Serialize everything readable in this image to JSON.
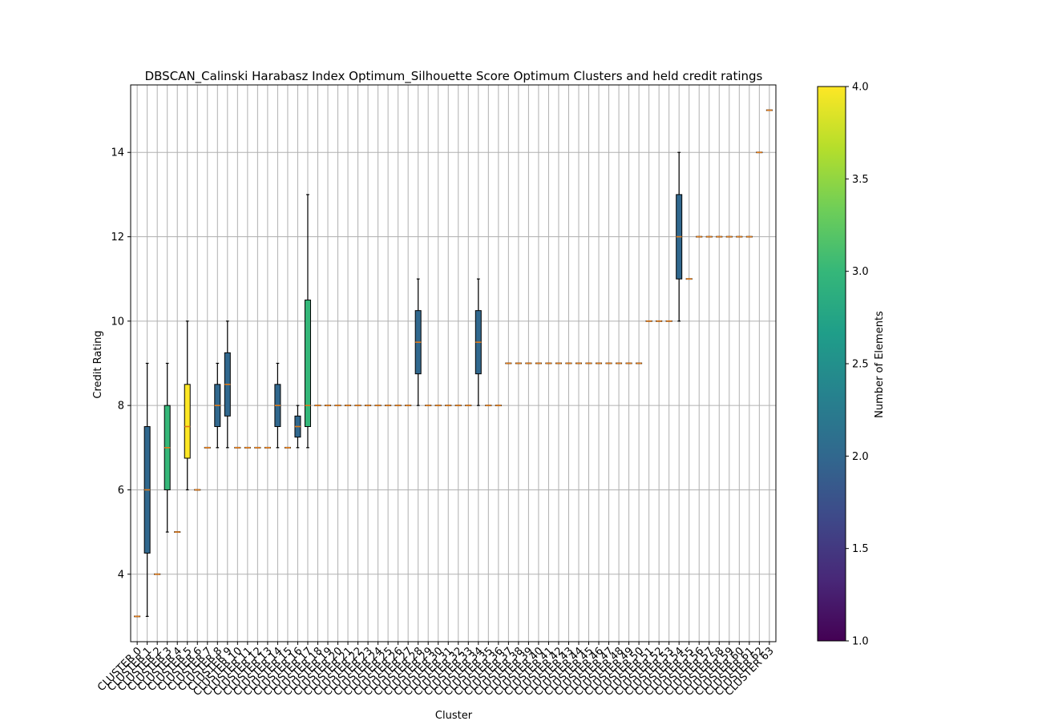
{
  "chart_data": {
    "type": "boxplot",
    "title": "DBSCAN_Calinski Harabasz Index Optimum_Silhouette Score Optimum Clusters and held credit ratings",
    "xlabel": "Cluster",
    "ylabel": "Credit Rating",
    "ylim": [
      2.4,
      15.6
    ],
    "yticks": [
      4,
      6,
      8,
      10,
      12,
      14
    ],
    "grid": true,
    "box_stroke_color": "#000000",
    "median_color": "#e07b1a",
    "colorbar": {
      "label": "Number of Elements",
      "colormap": "viridis",
      "range": [
        1.0,
        4.0
      ],
      "ticks": [
        "1.0",
        "1.5",
        "2.0",
        "2.5",
        "3.0",
        "3.5",
        "4.0"
      ],
      "colors": [
        "#440154",
        "#482878",
        "#3e4989",
        "#31688e",
        "#26828e",
        "#1f9e89",
        "#35b779",
        "#6ece58",
        "#b5de2b",
        "#fde725"
      ]
    },
    "boxes": [
      {
        "label": "CLUSTER 0",
        "n": 1,
        "q1": 3,
        "median": 3,
        "q3": 3,
        "whislo": 3,
        "whishi": 3
      },
      {
        "label": "CLUSTER 1",
        "n": 2,
        "q1": 4.5,
        "median": 6,
        "q3": 7.5,
        "whislo": 3,
        "whishi": 9
      },
      {
        "label": "CLUSTER 2",
        "n": 1,
        "q1": 4,
        "median": 4,
        "q3": 4,
        "whislo": 4,
        "whishi": 4
      },
      {
        "label": "CLUSTER 3",
        "n": 3,
        "q1": 6,
        "median": 7,
        "q3": 8,
        "whislo": 5,
        "whishi": 9
      },
      {
        "label": "CLUSTER 4",
        "n": 1,
        "q1": 5,
        "median": 5,
        "q3": 5,
        "whislo": 5,
        "whishi": 5
      },
      {
        "label": "CLUSTER 5",
        "n": 4,
        "q1": 6.75,
        "median": 7.5,
        "q3": 8.5,
        "whislo": 6,
        "whishi": 10
      },
      {
        "label": "CLUSTER 6",
        "n": 1,
        "q1": 6,
        "median": 6,
        "q3": 6,
        "whislo": 6,
        "whishi": 6
      },
      {
        "label": "CLUSTER 7",
        "n": 1,
        "q1": 7,
        "median": 7,
        "q3": 7,
        "whislo": 7,
        "whishi": 7
      },
      {
        "label": "CLUSTER 8",
        "n": 2,
        "q1": 7.5,
        "median": 8,
        "q3": 8.5,
        "whislo": 7,
        "whishi": 9
      },
      {
        "label": "CLUSTER 9",
        "n": 2,
        "q1": 7.75,
        "median": 8.5,
        "q3": 9.25,
        "whislo": 7,
        "whishi": 10
      },
      {
        "label": "CLUSTER 10",
        "n": 1,
        "q1": 7,
        "median": 7,
        "q3": 7,
        "whislo": 7,
        "whishi": 7
      },
      {
        "label": "CLUSTER 11",
        "n": 1,
        "q1": 7,
        "median": 7,
        "q3": 7,
        "whislo": 7,
        "whishi": 7
      },
      {
        "label": "CLUSTER 12",
        "n": 1,
        "q1": 7,
        "median": 7,
        "q3": 7,
        "whislo": 7,
        "whishi": 7
      },
      {
        "label": "CLUSTER 13",
        "n": 1,
        "q1": 7,
        "median": 7,
        "q3": 7,
        "whislo": 7,
        "whishi": 7
      },
      {
        "label": "CLUSTER 14",
        "n": 2,
        "q1": 7.5,
        "median": 8,
        "q3": 8.5,
        "whislo": 7,
        "whishi": 9
      },
      {
        "label": "CLUSTER 15",
        "n": 1,
        "q1": 7,
        "median": 7,
        "q3": 7,
        "whislo": 7,
        "whishi": 7
      },
      {
        "label": "CLUSTER 16",
        "n": 2,
        "q1": 7.25,
        "median": 7.5,
        "q3": 7.75,
        "whislo": 7,
        "whishi": 8
      },
      {
        "label": "CLUSTER 17",
        "n": 3,
        "q1": 7.5,
        "median": 8,
        "q3": 10.5,
        "whislo": 7,
        "whishi": 13
      },
      {
        "label": "CLUSTER 18",
        "n": 1,
        "q1": 8,
        "median": 8,
        "q3": 8,
        "whislo": 8,
        "whishi": 8
      },
      {
        "label": "CLUSTER 19",
        "n": 1,
        "q1": 8,
        "median": 8,
        "q3": 8,
        "whislo": 8,
        "whishi": 8
      },
      {
        "label": "CLUSTER 20",
        "n": 1,
        "q1": 8,
        "median": 8,
        "q3": 8,
        "whislo": 8,
        "whishi": 8
      },
      {
        "label": "CLUSTER 21",
        "n": 1,
        "q1": 8,
        "median": 8,
        "q3": 8,
        "whislo": 8,
        "whishi": 8
      },
      {
        "label": "CLUSTER 22",
        "n": 1,
        "q1": 8,
        "median": 8,
        "q3": 8,
        "whislo": 8,
        "whishi": 8
      },
      {
        "label": "CLUSTER 23",
        "n": 1,
        "q1": 8,
        "median": 8,
        "q3": 8,
        "whislo": 8,
        "whishi": 8
      },
      {
        "label": "CLUSTER 24",
        "n": 1,
        "q1": 8,
        "median": 8,
        "q3": 8,
        "whislo": 8,
        "whishi": 8
      },
      {
        "label": "CLUSTER 25",
        "n": 1,
        "q1": 8,
        "median": 8,
        "q3": 8,
        "whislo": 8,
        "whishi": 8
      },
      {
        "label": "CLUSTER 26",
        "n": 1,
        "q1": 8,
        "median": 8,
        "q3": 8,
        "whislo": 8,
        "whishi": 8
      },
      {
        "label": "CLUSTER 27",
        "n": 1,
        "q1": 8,
        "median": 8,
        "q3": 8,
        "whislo": 8,
        "whishi": 8
      },
      {
        "label": "CLUSTER 28",
        "n": 2,
        "q1": 8.75,
        "median": 9.5,
        "q3": 10.25,
        "whislo": 8,
        "whishi": 11
      },
      {
        "label": "CLUSTER 29",
        "n": 1,
        "q1": 8,
        "median": 8,
        "q3": 8,
        "whislo": 8,
        "whishi": 8
      },
      {
        "label": "CLUSTER 30",
        "n": 1,
        "q1": 8,
        "median": 8,
        "q3": 8,
        "whislo": 8,
        "whishi": 8
      },
      {
        "label": "CLUSTER 31",
        "n": 1,
        "q1": 8,
        "median": 8,
        "q3": 8,
        "whislo": 8,
        "whishi": 8
      },
      {
        "label": "CLUSTER 32",
        "n": 1,
        "q1": 8,
        "median": 8,
        "q3": 8,
        "whislo": 8,
        "whishi": 8
      },
      {
        "label": "CLUSTER 33",
        "n": 1,
        "q1": 8,
        "median": 8,
        "q3": 8,
        "whislo": 8,
        "whishi": 8
      },
      {
        "label": "CLUSTER 34",
        "n": 2,
        "q1": 8.75,
        "median": 9.5,
        "q3": 10.25,
        "whislo": 8,
        "whishi": 11
      },
      {
        "label": "CLUSTER 35",
        "n": 1,
        "q1": 8,
        "median": 8,
        "q3": 8,
        "whislo": 8,
        "whishi": 8
      },
      {
        "label": "CLUSTER 36",
        "n": 1,
        "q1": 8,
        "median": 8,
        "q3": 8,
        "whislo": 8,
        "whishi": 8
      },
      {
        "label": "CLUSTER 37",
        "n": 1,
        "q1": 9,
        "median": 9,
        "q3": 9,
        "whislo": 9,
        "whishi": 9
      },
      {
        "label": "CLUSTER 38",
        "n": 1,
        "q1": 9,
        "median": 9,
        "q3": 9,
        "whislo": 9,
        "whishi": 9
      },
      {
        "label": "CLUSTER 39",
        "n": 1,
        "q1": 9,
        "median": 9,
        "q3": 9,
        "whislo": 9,
        "whishi": 9
      },
      {
        "label": "CLUSTER 40",
        "n": 1,
        "q1": 9,
        "median": 9,
        "q3": 9,
        "whislo": 9,
        "whishi": 9
      },
      {
        "label": "CLUSTER 41",
        "n": 1,
        "q1": 9,
        "median": 9,
        "q3": 9,
        "whislo": 9,
        "whishi": 9
      },
      {
        "label": "CLUSTER 42",
        "n": 1,
        "q1": 9,
        "median": 9,
        "q3": 9,
        "whislo": 9,
        "whishi": 9
      },
      {
        "label": "CLUSTER 43",
        "n": 1,
        "q1": 9,
        "median": 9,
        "q3": 9,
        "whislo": 9,
        "whishi": 9
      },
      {
        "label": "CLUSTER 44",
        "n": 1,
        "q1": 9,
        "median": 9,
        "q3": 9,
        "whislo": 9,
        "whishi": 9
      },
      {
        "label": "CLUSTER 45",
        "n": 1,
        "q1": 9,
        "median": 9,
        "q3": 9,
        "whislo": 9,
        "whishi": 9
      },
      {
        "label": "CLUSTER 46",
        "n": 1,
        "q1": 9,
        "median": 9,
        "q3": 9,
        "whislo": 9,
        "whishi": 9
      },
      {
        "label": "CLUSTER 47",
        "n": 1,
        "q1": 9,
        "median": 9,
        "q3": 9,
        "whislo": 9,
        "whishi": 9
      },
      {
        "label": "CLUSTER 48",
        "n": 1,
        "q1": 9,
        "median": 9,
        "q3": 9,
        "whislo": 9,
        "whishi": 9
      },
      {
        "label": "CLUSTER 49",
        "n": 1,
        "q1": 9,
        "median": 9,
        "q3": 9,
        "whislo": 9,
        "whishi": 9
      },
      {
        "label": "CLUSTER 50",
        "n": 1,
        "q1": 9,
        "median": 9,
        "q3": 9,
        "whislo": 9,
        "whishi": 9
      },
      {
        "label": "CLUSTER 51",
        "n": 1,
        "q1": 10,
        "median": 10,
        "q3": 10,
        "whislo": 10,
        "whishi": 10
      },
      {
        "label": "CLUSTER 52",
        "n": 1,
        "q1": 10,
        "median": 10,
        "q3": 10,
        "whislo": 10,
        "whishi": 10
      },
      {
        "label": "CLUSTER 53",
        "n": 1,
        "q1": 10,
        "median": 10,
        "q3": 10,
        "whislo": 10,
        "whishi": 10
      },
      {
        "label": "CLUSTER 54",
        "n": 2,
        "q1": 11,
        "median": 12,
        "q3": 13,
        "whislo": 10,
        "whishi": 14
      },
      {
        "label": "CLUSTER 55",
        "n": 1,
        "q1": 11,
        "median": 11,
        "q3": 11,
        "whislo": 11,
        "whishi": 11
      },
      {
        "label": "CLUSTER 56",
        "n": 1,
        "q1": 12,
        "median": 12,
        "q3": 12,
        "whislo": 12,
        "whishi": 12
      },
      {
        "label": "CLUSTER 57",
        "n": 1,
        "q1": 12,
        "median": 12,
        "q3": 12,
        "whislo": 12,
        "whishi": 12
      },
      {
        "label": "CLUSTER 58",
        "n": 1,
        "q1": 12,
        "median": 12,
        "q3": 12,
        "whislo": 12,
        "whishi": 12
      },
      {
        "label": "CLUSTER 59",
        "n": 1,
        "q1": 12,
        "median": 12,
        "q3": 12,
        "whislo": 12,
        "whishi": 12
      },
      {
        "label": "CLUSTER 60",
        "n": 1,
        "q1": 12,
        "median": 12,
        "q3": 12,
        "whislo": 12,
        "whishi": 12
      },
      {
        "label": "CLUSTER 61",
        "n": 1,
        "q1": 12,
        "median": 12,
        "q3": 12,
        "whislo": 12,
        "whishi": 12
      },
      {
        "label": "CLUSTER 62",
        "n": 1,
        "q1": 14,
        "median": 14,
        "q3": 14,
        "whislo": 14,
        "whishi": 14
      },
      {
        "label": "CLUSTER 63",
        "n": 1,
        "q1": 15,
        "median": 15,
        "q3": 15,
        "whislo": 15,
        "whishi": 15
      }
    ]
  }
}
